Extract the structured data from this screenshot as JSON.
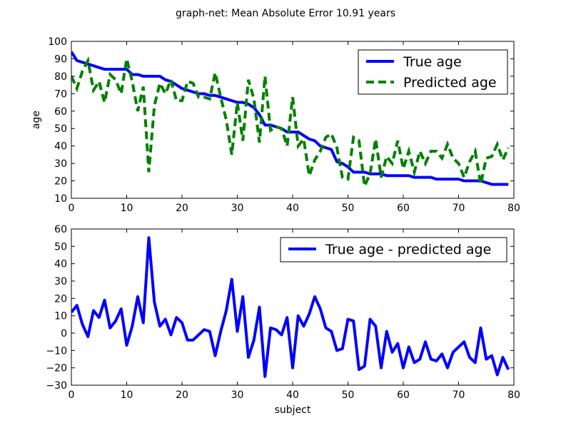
{
  "figure": {
    "title": "graph-net: Mean Absolute Error 10.91 years"
  },
  "colors": {
    "true_age": "#0000ff",
    "predicted_age": "#008000",
    "difference": "#0000ff"
  },
  "chart_data": [
    {
      "type": "line",
      "title": "graph-net: Mean Absolute Error 10.91 years",
      "xlabel": "",
      "ylabel": "age",
      "xlim": [
        0,
        80
      ],
      "ylim": [
        10,
        100
      ],
      "xticks": [
        "0",
        "10",
        "20",
        "30",
        "40",
        "50",
        "60",
        "70",
        "80"
      ],
      "yticks": [
        "10",
        "20",
        "30",
        "40",
        "50",
        "60",
        "70",
        "80",
        "90",
        "100"
      ],
      "legend": "top-right",
      "series": [
        {
          "name": "True age",
          "style": "solid",
          "color": "#0000ff",
          "x": [
            0,
            1,
            2,
            3,
            4,
            5,
            6,
            7,
            8,
            9,
            10,
            11,
            12,
            13,
            14,
            15,
            16,
            17,
            18,
            19,
            20,
            21,
            22,
            23,
            24,
            25,
            26,
            27,
            28,
            29,
            30,
            31,
            32,
            33,
            34,
            35,
            36,
            37,
            38,
            39,
            40,
            41,
            42,
            43,
            44,
            45,
            46,
            47,
            48,
            49,
            50,
            51,
            52,
            53,
            54,
            55,
            56,
            57,
            58,
            59,
            60,
            61,
            62,
            63,
            64,
            65,
            66,
            67,
            68,
            69,
            70,
            71,
            72,
            73,
            74,
            75,
            76,
            77,
            78,
            79
          ],
          "values": [
            94,
            89,
            88,
            87,
            86,
            85,
            84,
            84,
            84,
            84,
            84,
            81,
            81,
            80,
            80,
            80,
            80,
            78,
            77,
            75,
            73,
            72,
            71,
            70,
            70,
            69,
            69,
            68,
            67,
            66,
            65,
            65,
            64,
            62,
            58,
            52,
            52,
            51,
            50,
            48,
            48,
            48,
            46,
            44,
            43,
            40,
            39,
            38,
            31,
            30,
            28,
            25,
            25,
            25,
            24,
            24,
            24,
            23,
            23,
            23,
            23,
            23,
            22,
            22,
            22,
            22,
            21,
            21,
            21,
            21,
            21,
            20,
            20,
            20,
            20,
            19,
            18,
            18,
            18,
            18
          ]
        },
        {
          "name": "Predicted age",
          "style": "dashed",
          "color": "#008000",
          "x": [
            0,
            1,
            2,
            3,
            4,
            5,
            6,
            7,
            8,
            9,
            10,
            11,
            12,
            13,
            14,
            15,
            16,
            17,
            18,
            19,
            20,
            21,
            22,
            23,
            24,
            25,
            26,
            27,
            28,
            29,
            30,
            31,
            32,
            33,
            34,
            35,
            36,
            37,
            38,
            39,
            40,
            41,
            42,
            43,
            44,
            45,
            46,
            47,
            48,
            49,
            50,
            51,
            52,
            53,
            54,
            55,
            56,
            57,
            58,
            59,
            60,
            61,
            62,
            63,
            64,
            65,
            66,
            67,
            68,
            69,
            70,
            71,
            72,
            73,
            74,
            75,
            76,
            77,
            78,
            79
          ],
          "values": [
            80,
            73,
            83,
            89,
            72,
            77,
            65,
            81,
            78,
            70,
            90,
            77,
            60,
            74,
            25,
            63,
            76,
            70,
            78,
            66,
            66,
            77,
            76,
            68,
            68,
            67,
            82,
            68,
            55,
            35,
            65,
            43,
            78,
            67,
            42,
            80,
            49,
            51,
            50,
            40,
            68,
            40,
            44,
            23,
            32,
            37,
            45,
            47,
            39,
            22,
            21,
            45,
            43,
            17,
            24,
            44,
            22,
            34,
            30,
            43,
            27,
            37,
            25,
            37,
            30,
            37,
            37,
            33,
            41,
            33,
            30,
            22,
            31,
            37,
            18,
            33,
            34,
            41,
            32,
            39
          ]
        }
      ]
    },
    {
      "type": "line",
      "title": "",
      "xlabel": "subject",
      "ylabel": "",
      "xlim": [
        0,
        80
      ],
      "ylim": [
        -30,
        60
      ],
      "xticks": [
        "0",
        "10",
        "20",
        "30",
        "40",
        "50",
        "60",
        "70",
        "80"
      ],
      "yticks": [
        "−30",
        "−20",
        "−10",
        "0",
        "10",
        "20",
        "30",
        "40",
        "50",
        "60"
      ],
      "legend": "top-right",
      "series": [
        {
          "name": "True age - predicted age",
          "style": "solid",
          "color": "#0000ff",
          "x": [
            0,
            1,
            2,
            3,
            4,
            5,
            6,
            7,
            8,
            9,
            10,
            11,
            12,
            13,
            14,
            15,
            16,
            17,
            18,
            19,
            20,
            21,
            22,
            23,
            24,
            25,
            26,
            27,
            28,
            29,
            30,
            31,
            32,
            33,
            34,
            35,
            36,
            37,
            38,
            39,
            40,
            41,
            42,
            43,
            44,
            45,
            46,
            47,
            48,
            49,
            50,
            51,
            52,
            53,
            54,
            55,
            56,
            57,
            58,
            59,
            60,
            61,
            62,
            63,
            64,
            65,
            66,
            67,
            68,
            69,
            70,
            71,
            72,
            73,
            74,
            75,
            76,
            77,
            78,
            79
          ],
          "values": [
            12,
            16,
            5,
            -2,
            13,
            9,
            19,
            3,
            7,
            14,
            -7,
            4,
            21,
            6,
            55,
            18,
            4,
            8,
            -1,
            9,
            6,
            -4,
            -4,
            -1,
            2,
            1,
            -13,
            1,
            13,
            31,
            1,
            21,
            -14,
            -4,
            15,
            -25,
            3,
            2,
            -1,
            9,
            -20,
            10,
            4,
            11,
            21,
            14,
            3,
            1,
            -10,
            -9,
            8,
            7,
            -21,
            -19,
            8,
            4,
            -20,
            1,
            -11,
            -6,
            -20,
            -8,
            -17,
            -15,
            -5,
            -15,
            -16,
            -12,
            -20,
            -11,
            -8,
            -5,
            -14,
            -17,
            3,
            -15,
            -13,
            -24,
            -14,
            -21
          ]
        }
      ]
    }
  ]
}
